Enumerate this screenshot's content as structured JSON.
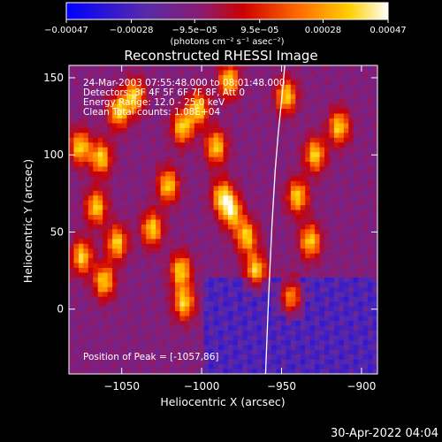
{
  "chart_data": {
    "type": "heatmap",
    "title": "Reconstructed RHESSI Image",
    "xlabel": "Heliocentric X (arcsec)",
    "ylabel": "Heliocentric Y (arcsec)",
    "xlim": [
      -1083,
      -890
    ],
    "ylim": [
      -42,
      158
    ],
    "x_ticks": [
      -1050,
      -1000,
      -950,
      -900
    ],
    "x_tick_labels": [
      "−1050",
      "−1000",
      "−950",
      "−900"
    ],
    "y_ticks": [
      0,
      50,
      100,
      150
    ],
    "y_tick_labels": [
      "0",
      "50",
      "100",
      "150"
    ],
    "colorbar": {
      "range": [
        -0.00047,
        0.00047
      ],
      "ticks": [
        -0.00047,
        -0.00028,
        -9.5e-05,
        9.5e-05,
        0.00028,
        0.00047
      ],
      "tick_labels": [
        "−0.00047",
        "−0.00028",
        "−9.5e−05",
        "9.5e−05",
        "0.00028",
        "0.00047"
      ],
      "units": "(photons cm⁻² s⁻¹ asec⁻²)",
      "colormap": "blue-purple-red-orange-yellow-white",
      "colors": [
        "#0000ff",
        "#5a2aa8",
        "#8a1c70",
        "#cc0000",
        "#ff6a00",
        "#ffd000",
        "#ffffff"
      ]
    },
    "solar_limb": {
      "x": [
        -960,
        -958,
        -956,
        -954,
        -952,
        -950,
        -949,
        -948
      ],
      "y": [
        -42,
        10,
        55,
        90,
        115,
        135,
        146,
        158
      ]
    },
    "hot_spots": [
      {
        "x": -1063,
        "y": 98
      },
      {
        "x": -1042,
        "y": 138
      },
      {
        "x": -1052,
        "y": 128
      },
      {
        "x": -1012,
        "y": 118
      },
      {
        "x": -1021,
        "y": 80
      },
      {
        "x": -1053,
        "y": 43
      },
      {
        "x": -1061,
        "y": 18
      },
      {
        "x": -1066,
        "y": 66
      },
      {
        "x": -1002,
        "y": 130
      },
      {
        "x": -991,
        "y": 105
      },
      {
        "x": -987,
        "y": 73
      },
      {
        "x": -981,
        "y": 63
      },
      {
        "x": -1031,
        "y": 52
      },
      {
        "x": -1013,
        "y": 25
      },
      {
        "x": -1011,
        "y": 4
      },
      {
        "x": -972,
        "y": 47
      },
      {
        "x": -966,
        "y": 25
      },
      {
        "x": -947,
        "y": 138
      },
      {
        "x": -929,
        "y": 100
      },
      {
        "x": -940,
        "y": 73
      },
      {
        "x": -932,
        "y": 44
      },
      {
        "x": -944,
        "y": 8
      },
      {
        "x": -914,
        "y": 118
      },
      {
        "x": -983,
        "y": 148
      },
      {
        "x": -1076,
        "y": 105
      },
      {
        "x": -1075,
        "y": 34
      }
    ],
    "annotations": [
      "24-Mar-2003 07:55:48.000 to 08:01:48.000",
      "Detectors: 3F 4F 5F 6F 7F 8F, Att 0",
      "Energy Range: 12.0 - 25.0 keV",
      "Clean     Total counts: 1.08E+04"
    ],
    "position_of_peak": "Position of Peak = [-1057,86]",
    "footer_date": "30-Apr-2022 04:04",
    "grid": false
  }
}
